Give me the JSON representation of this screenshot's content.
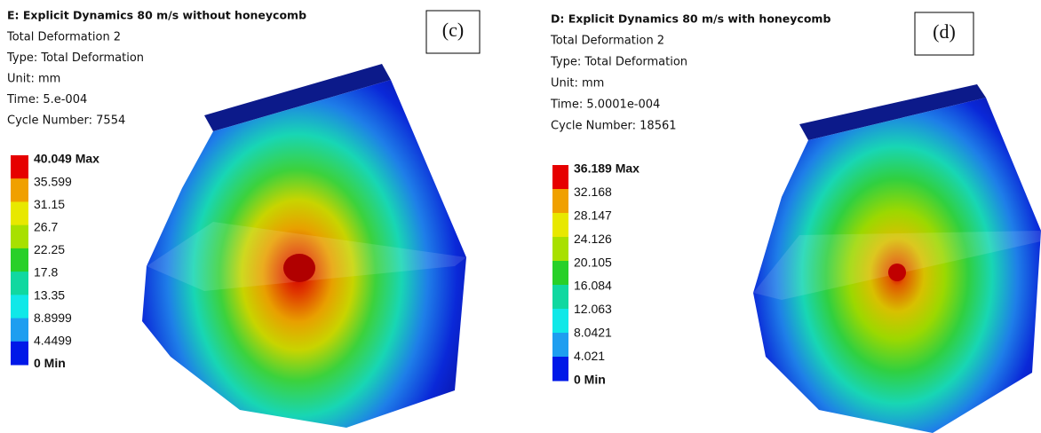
{
  "panels": [
    {
      "title": "E: Explicit Dynamics 80 m/s without honeycomb",
      "lines": [
        "Total Deformation 2",
        "Type: Total Deformation",
        "Unit: mm",
        "Time: 5.e-004",
        "Cycle Number: 7554"
      ],
      "tag": "(c)",
      "legend": [
        "40.049 Max",
        "35.599",
        "31.15",
        "26.7",
        "22.25",
        "17.8",
        "13.35",
        "8.8999",
        "4.4499",
        "0 Min"
      ]
    },
    {
      "title": "D: Explicit Dynamics 80 m/s with honeycomb",
      "lines": [
        "Total Deformation 2",
        "Type: Total Deformation",
        "Unit: mm",
        "Time: 5.0001e-004",
        "Cycle Number: 18561"
      ],
      "tag": "(d)",
      "legend": [
        "36.189 Max",
        "32.168",
        "28.147",
        "24.126",
        "20.105",
        "16.084",
        "12.063",
        "8.0421",
        "4.021",
        "0 Min"
      ]
    }
  ]
}
